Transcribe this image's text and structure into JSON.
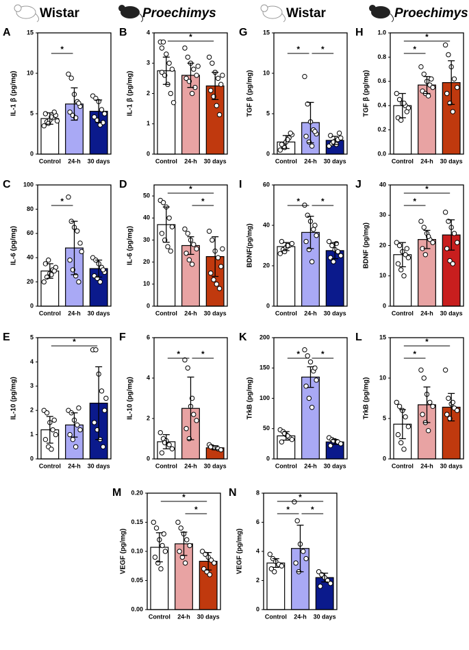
{
  "headers": [
    "Wistar",
    "Proechimys",
    "Wistar",
    "Proechimys"
  ],
  "chart_data": [
    {
      "type": "bar",
      "title": "A",
      "ylabel": "IL-1 β (pg/mg)",
      "categories": [
        "Control",
        "24-h",
        "30 days"
      ],
      "values": [
        4.4,
        6.2,
        5.3
      ],
      "errors": [
        0.7,
        2.0,
        1.4
      ],
      "colors": [
        "#ffffff",
        "#a9a9f5",
        "#0b1a8c"
      ],
      "ylim": [
        0,
        15
      ],
      "yticks": [
        0,
        5,
        10,
        15
      ],
      "points": [
        [
          3.5,
          4,
          4.2,
          4.5,
          4.8,
          5,
          3.8,
          4.6,
          5.2,
          4.1
        ],
        [
          9.9,
          9.4,
          7.4,
          6.5,
          5.9,
          5.2,
          4.8,
          4.5,
          6.3
        ],
        [
          7.2,
          6.9,
          6.5,
          5.5,
          5.0,
          4.6,
          4.2,
          3.6,
          3.9
        ]
      ],
      "significance": [
        {
          "groups": [
            0,
            1
          ],
          "label": "*"
        }
      ]
    },
    {
      "type": "bar",
      "title": "B",
      "ylabel": "IL-1 β (pg/mg)",
      "categories": [
        "Control",
        "24-h",
        "30 days"
      ],
      "values": [
        2.75,
        2.6,
        2.25
      ],
      "errors": [
        0.45,
        0.4,
        0.45
      ],
      "colors": [
        "#ffffff",
        "#e8a3a3",
        "#c0390e"
      ],
      "ylim": [
        0,
        4
      ],
      "yticks": [
        0,
        1,
        2,
        3,
        4
      ],
      "points": [
        [
          3.7,
          3.7,
          3.3,
          3.0,
          2.8,
          2.7,
          2.6,
          2.3,
          2.0,
          1.7,
          3.5
        ],
        [
          3.5,
          3.2,
          3.0,
          2.8,
          2.6,
          2.5,
          2.4,
          2.0,
          2.2,
          2.9
        ],
        [
          3.2,
          3.0,
          2.7,
          2.5,
          2.3,
          2.1,
          1.9,
          1.6,
          1.3,
          2.6
        ]
      ],
      "significance": [
        {
          "groups": [
            0,
            2
          ],
          "label": "*"
        }
      ]
    },
    {
      "type": "bar",
      "title": "G",
      "ylabel": "TGF β (pg/mg)",
      "categories": [
        "Control",
        "24-h",
        "30 days"
      ],
      "values": [
        1.5,
        3.9,
        1.7
      ],
      "errors": [
        0.8,
        2.5,
        0.5
      ],
      "colors": [
        "#ffffff",
        "#a9a9f5",
        "#0b1a8c"
      ],
      "ylim": [
        0,
        15
      ],
      "yticks": [
        0,
        5,
        10,
        15
      ],
      "points": [
        [
          0.5,
          1,
          1.5,
          2,
          2.4,
          1.2,
          0.8,
          1.8,
          2.6
        ],
        [
          9.6,
          6.2,
          4.0,
          3.0,
          2.5,
          2.2,
          1.5,
          1.0,
          2.8
        ],
        [
          1,
          1.3,
          1.6,
          1.8,
          2.0,
          2.3,
          1.5,
          1.2,
          2.6
        ]
      ],
      "significance": [
        {
          "groups": [
            0,
            1
          ],
          "label": "*"
        },
        {
          "groups": [
            1,
            2
          ],
          "label": "*"
        }
      ]
    },
    {
      "type": "bar",
      "title": "H",
      "ylabel": "TGF β (pg/mg)",
      "categories": [
        "Control",
        "24-h",
        "30 days"
      ],
      "values": [
        0.4,
        0.57,
        0.59
      ],
      "errors": [
        0.1,
        0.07,
        0.18
      ],
      "colors": [
        "#ffffff",
        "#e8a3a3",
        "#c0390e"
      ],
      "ylim": [
        0,
        1.0
      ],
      "yticks": [
        {
          "value": 0,
          "label": "0.0"
        },
        0.2,
        0.4,
        0.6,
        0.8,
        {
          "value": 1,
          "label": "1.0"
        }
      ],
      "points": [
        [
          0.5,
          0.45,
          0.42,
          0.4,
          0.38,
          0.3,
          0.28,
          0.42,
          0.35
        ],
        [
          0.72,
          0.66,
          0.6,
          0.57,
          0.55,
          0.52,
          0.5,
          0.48,
          0.62
        ],
        [
          0.9,
          0.82,
          0.72,
          0.62,
          0.55,
          0.5,
          0.42,
          0.35
        ]
      ],
      "significance": [
        {
          "groups": [
            0,
            1
          ],
          "label": "*"
        },
        {
          "groups": [
            0,
            2
          ],
          "label": "*"
        }
      ]
    },
    {
      "type": "bar",
      "title": "C",
      "ylabel": "IL-6 (pg/mg)",
      "categories": [
        "Control",
        "24-h",
        "30 days"
      ],
      "values": [
        29,
        48,
        31
      ],
      "errors": [
        6,
        22,
        7
      ],
      "colors": [
        "#ffffff",
        "#a9a9f5",
        "#0b1a8c"
      ],
      "ylim": [
        0,
        100
      ],
      "yticks": [
        0,
        20,
        40,
        60,
        80,
        100
      ],
      "points": [
        [
          20,
          24,
          27,
          30,
          32,
          35,
          38,
          26,
          29
        ],
        [
          90,
          70,
          65,
          62,
          52,
          38,
          30,
          25,
          20,
          45
        ],
        [
          40,
          38,
          35,
          32,
          28,
          25,
          23,
          20,
          30
        ]
      ],
      "significance": [
        {
          "groups": [
            0,
            1
          ],
          "label": "*"
        }
      ]
    },
    {
      "type": "bar",
      "title": "D",
      "ylabel": "IL-6 (pg/mg)",
      "categories": [
        "Control",
        "24-h",
        "30 days"
      ],
      "values": [
        37,
        27.5,
        22.5
      ],
      "errors": [
        8,
        4,
        9
      ],
      "colors": [
        "#ffffff",
        "#e8a3a3",
        "#c0390e"
      ],
      "ylim": [
        0,
        55
      ],
      "yticks": [
        0,
        10,
        20,
        30,
        40,
        50
      ],
      "points": [
        [
          48,
          47,
          45,
          40,
          36,
          33,
          30,
          27,
          25
        ],
        [
          35,
          33,
          30,
          28,
          26,
          24,
          21,
          19
        ],
        [
          34,
          30,
          25,
          22,
          18,
          15,
          12,
          10,
          8,
          26
        ]
      ],
      "significance": [
        {
          "groups": [
            0,
            2
          ],
          "label": "*"
        },
        {
          "groups": [
            1,
            2
          ],
          "label": "*"
        }
      ]
    },
    {
      "type": "bar",
      "title": "I",
      "ylabel": "BDNF(pg/mg)",
      "categories": [
        "Control",
        "24-h",
        "30 days"
      ],
      "values": [
        29.5,
        36.5,
        27.5
      ],
      "errors": [
        2,
        8,
        4
      ],
      "colors": [
        "#ffffff",
        "#a9a9f5",
        "#0b1a8c"
      ],
      "ylim": [
        0,
        60
      ],
      "yticks": [
        0,
        20,
        40,
        60
      ],
      "points": [
        [
          26,
          28,
          29,
          30,
          31,
          32,
          27,
          30
        ],
        [
          50,
          45,
          42,
          38,
          35,
          32,
          28,
          22,
          40
        ],
        [
          32,
          30,
          28,
          27,
          25,
          24,
          22,
          31
        ]
      ],
      "significance": [
        {
          "groups": [
            0,
            1
          ],
          "label": "*"
        },
        {
          "groups": [
            1,
            2
          ],
          "label": "*"
        }
      ]
    },
    {
      "type": "bar",
      "title": "J",
      "ylabel": "BDNF (pg/mg)",
      "categories": [
        "Control",
        "24-h",
        "30 days"
      ],
      "values": [
        17,
        22,
        23.5
      ],
      "errors": [
        4,
        3,
        5
      ],
      "colors": [
        "#ffffff",
        "#e8a3a3",
        "#c81e1e"
      ],
      "ylim": [
        0,
        40
      ],
      "yticks": [
        0,
        10,
        20,
        30,
        40
      ],
      "points": [
        [
          21,
          20,
          18,
          17,
          16,
          14,
          12,
          10,
          19
        ],
        [
          28,
          26,
          24,
          22,
          21,
          19,
          17,
          23
        ],
        [
          31,
          28,
          26,
          24,
          21,
          19,
          15,
          14
        ]
      ],
      "significance": [
        {
          "groups": [
            0,
            1
          ],
          "label": "*"
        },
        {
          "groups": [
            0,
            2
          ],
          "label": "*"
        }
      ]
    },
    {
      "type": "bar",
      "title": "E",
      "ylabel": "IL-10 (pg/mg)",
      "categories": [
        "Control",
        "24-h",
        "30 days"
      ],
      "values": [
        1.2,
        1.4,
        2.3
      ],
      "errors": [
        0.55,
        0.5,
        1.5
      ],
      "colors": [
        "#ffffff",
        "#a9a9f5",
        "#0b1a8c"
      ],
      "ylim": [
        0,
        5
      ],
      "yticks": [
        0,
        1,
        2,
        3,
        4,
        5
      ],
      "points": [
        [
          2.0,
          1.9,
          1.5,
          1.2,
          1.0,
          0.8,
          0.5,
          0.4,
          1.6
        ],
        [
          2.0,
          1.9,
          1.6,
          1.4,
          1.2,
          1.0,
          0.8,
          0.5,
          2.1
        ],
        [
          4.5,
          4.5,
          3.5,
          2.8,
          2.0,
          1.5,
          1.2,
          0.8,
          0.5,
          2.5
        ]
      ],
      "significance": [
        {
          "groups": [
            0,
            2
          ],
          "label": "*"
        }
      ]
    },
    {
      "type": "bar",
      "title": "F",
      "ylabel": "IL-10 (pg/mg)",
      "categories": [
        "Control",
        "24-h",
        "30 days"
      ],
      "values": [
        0.85,
        2.5,
        0.55
      ],
      "errors": [
        0.35,
        1.55,
        0.1
      ],
      "colors": [
        "#ffffff",
        "#e8a3a3",
        "#c0390e"
      ],
      "ylim": [
        0,
        6
      ],
      "yticks": [
        0,
        2,
        4,
        6
      ],
      "points": [
        [
          1.3,
          1.0,
          0.9,
          0.7,
          0.5,
          0.3,
          0.8
        ],
        [
          4.9,
          4.5,
          2.6,
          2.2,
          1.9,
          1.5,
          1.0,
          3.0
        ],
        [
          0.7,
          0.6,
          0.55,
          0.5,
          0.45,
          0.6
        ]
      ],
      "significance": [
        {
          "groups": [
            0,
            1
          ],
          "label": "*"
        },
        {
          "groups": [
            1,
            2
          ],
          "label": "*"
        }
      ]
    },
    {
      "type": "bar",
      "title": "K",
      "ylabel": "TrkB (pg/mg)",
      "categories": [
        "Control",
        "24-h",
        "30 days"
      ],
      "values": [
        38,
        135,
        28
      ],
      "errors": [
        7,
        17,
        4
      ],
      "colors": [
        "#ffffff",
        "#a9a9f5",
        "#0b1a8c"
      ],
      "ylim": [
        0,
        200
      ],
      "yticks": [
        0,
        50,
        100,
        150,
        200
      ],
      "points": [
        [
          48,
          45,
          40,
          36,
          32,
          28,
          42,
          38
        ],
        [
          180,
          170,
          160,
          145,
          130,
          120,
          100,
          85,
          150
        ],
        [
          35,
          32,
          30,
          28,
          25,
          22,
          30
        ]
      ],
      "significance": [
        {
          "groups": [
            0,
            1
          ],
          "label": "*"
        },
        {
          "groups": [
            1,
            2
          ],
          "label": "*"
        }
      ]
    },
    {
      "type": "bar",
      "title": "L",
      "ylabel": "TrkB (pg/mg)",
      "categories": [
        "Control",
        "24-h",
        "30 days"
      ],
      "values": [
        4.3,
        6.7,
        6.4
      ],
      "errors": [
        1.8,
        2.2,
        1.7
      ],
      "colors": [
        "#ffffff",
        "#e8a3a3",
        "#c0390e"
      ],
      "ylim": [
        0,
        15
      ],
      "yticks": [
        0,
        5,
        10,
        15
      ],
      "points": [
        [
          7.0,
          6.5,
          6.0,
          5.2,
          4.0,
          3.0,
          2.0,
          1.2
        ],
        [
          11,
          10,
          8,
          7,
          6.5,
          5.5,
          4.5,
          3.5
        ],
        [
          11,
          7.5,
          6.8,
          6.3,
          6,
          5.5,
          5,
          7
        ]
      ],
      "significance": [
        {
          "groups": [
            0,
            1
          ],
          "label": "*"
        },
        {
          "groups": [
            0,
            2
          ],
          "label": "*"
        }
      ]
    },
    {
      "type": "bar",
      "title": "M",
      "ylabel": "VEGF (pg/mg)",
      "categories": [
        "Control",
        "24-h",
        "30 days"
      ],
      "values": [
        0.107,
        0.113,
        0.083
      ],
      "errors": [
        0.025,
        0.02,
        0.015
      ],
      "colors": [
        "#ffffff",
        "#e8a3a3",
        "#c0390e"
      ],
      "ylim": [
        0,
        0.2
      ],
      "yticks": [
        {
          "value": 0,
          "label": "0.00"
        },
        0.05,
        {
          "value": 0.1,
          "label": "0.10"
        },
        0.15,
        {
          "value": 0.2,
          "label": "0.20"
        }
      ],
      "points": [
        [
          0.15,
          0.14,
          0.12,
          0.11,
          0.1,
          0.09,
          0.08,
          0.07,
          0.13
        ],
        [
          0.15,
          0.14,
          0.13,
          0.12,
          0.11,
          0.1,
          0.09,
          0.08
        ],
        [
          0.1,
          0.095,
          0.09,
          0.085,
          0.08,
          0.07,
          0.065,
          0.06
        ]
      ],
      "significance": [
        {
          "groups": [
            0,
            2
          ],
          "label": "*"
        },
        {
          "groups": [
            1,
            2
          ],
          "label": "*"
        }
      ]
    },
    {
      "type": "bar",
      "title": "N",
      "ylabel": "VEGF (pg/mg)",
      "categories": [
        "Control",
        "24-h",
        "30 days"
      ],
      "values": [
        3.2,
        4.2,
        2.2
      ],
      "errors": [
        0.3,
        1.6,
        0.3
      ],
      "colors": [
        "#ffffff",
        "#a9a9f5",
        "#0b1a8c"
      ],
      "ylim": [
        0,
        8
      ],
      "yticks": [
        0,
        2,
        4,
        6,
        8
      ],
      "points": [
        [
          3.8,
          3.5,
          3.3,
          3.1,
          3.0,
          2.8,
          2.6
        ],
        [
          7.4,
          6.1,
          4.5,
          4.0,
          3.5,
          3.2,
          2.6
        ],
        [
          2.6,
          2.4,
          2.2,
          2.0,
          1.8,
          1.6
        ]
      ],
      "significance": [
        {
          "groups": [
            0,
            1
          ],
          "label": "*"
        },
        {
          "groups": [
            0,
            2
          ],
          "label": "*"
        },
        {
          "groups": [
            1,
            2
          ],
          "label": "*"
        }
      ]
    }
  ]
}
